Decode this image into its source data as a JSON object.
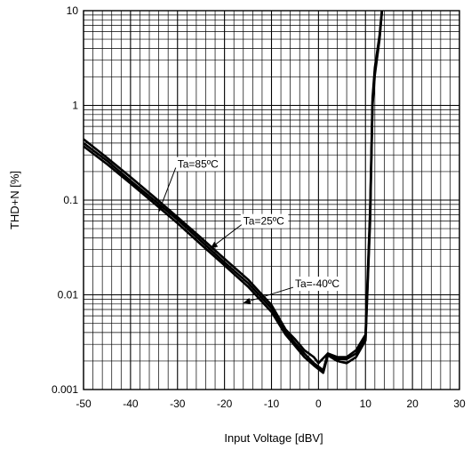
{
  "chart_data": {
    "type": "line",
    "title": "",
    "xlabel": "Input Voltage [dBV]",
    "ylabel": "THD+N [%]",
    "xlim": [
      -50,
      30
    ],
    "ylim": [
      0.001,
      10
    ],
    "yscale": "log",
    "grid": true,
    "x_ticks": [
      -50,
      -40,
      -30,
      -20,
      -10,
      0,
      10,
      20,
      30
    ],
    "x_tick_labels": [
      "-50",
      "-40",
      "-30",
      "-20",
      "-10",
      "0",
      "10",
      "20",
      "30"
    ],
    "y_ticks": [
      0.001,
      0.01,
      0.1,
      1,
      10
    ],
    "y_tick_labels": [
      "0.001",
      "0.01",
      "0.1",
      "1",
      "10"
    ],
    "line_color": "#000000",
    "series": [
      {
        "name": "Ta=85ºC",
        "x": [
          -50,
          -45,
          -40,
          -35,
          -30,
          -25,
          -20,
          -15,
          -10,
          -7,
          -5,
          -3,
          -1,
          0,
          2,
          4,
          6,
          8,
          10,
          11,
          11.5,
          12,
          13,
          13.5
        ],
        "y": [
          0.44,
          0.28,
          0.175,
          0.108,
          0.066,
          0.04,
          0.024,
          0.0145,
          0.0078,
          0.0043,
          0.0034,
          0.0026,
          0.0022,
          0.0019,
          0.0024,
          0.0022,
          0.0022,
          0.0026,
          0.0038,
          0.08,
          1.2,
          2.5,
          5.5,
          10
        ]
      },
      {
        "name": "Ta=25ºC",
        "x": [
          -50,
          -45,
          -40,
          -35,
          -30,
          -25,
          -20,
          -15,
          -10,
          -7,
          -5,
          -3,
          -1,
          1,
          2,
          4,
          6,
          8,
          10,
          11,
          11.5,
          12,
          13,
          13.5
        ],
        "y": [
          0.4,
          0.26,
          0.16,
          0.1,
          0.062,
          0.037,
          0.022,
          0.0133,
          0.0072,
          0.0041,
          0.0031,
          0.0024,
          0.0019,
          0.0016,
          0.0024,
          0.0021,
          0.0021,
          0.0024,
          0.0035,
          0.07,
          1.1,
          2.3,
          5.2,
          10
        ]
      },
      {
        "name": "Ta=-40ºC",
        "x": [
          -50,
          -45,
          -40,
          -35,
          -30,
          -25,
          -20,
          -15,
          -10,
          -7,
          -5,
          -3,
          -1,
          1,
          2,
          4,
          6,
          8,
          10,
          11,
          11.5,
          12,
          13,
          13.5
        ],
        "y": [
          0.37,
          0.24,
          0.15,
          0.093,
          0.057,
          0.034,
          0.0205,
          0.0122,
          0.0066,
          0.0038,
          0.0029,
          0.0022,
          0.0018,
          0.0015,
          0.0023,
          0.002,
          0.0019,
          0.0022,
          0.0033,
          0.06,
          1.0,
          2.1,
          5.0,
          10
        ]
      }
    ],
    "annotations": [
      {
        "text": "Ta=85ºC",
        "x": -30,
        "y": 0.22,
        "arrow_to": {
          "x": -34,
          "y": 0.075
        }
      },
      {
        "text": "Ta=25ºC",
        "x": -16,
        "y": 0.055,
        "arrow_to": {
          "x": -23,
          "y": 0.031
        }
      },
      {
        "text": "Ta=-40ºC",
        "x": -5,
        "y": 0.012,
        "arrow_to": {
          "x": -16,
          "y": 0.0082
        }
      }
    ]
  }
}
